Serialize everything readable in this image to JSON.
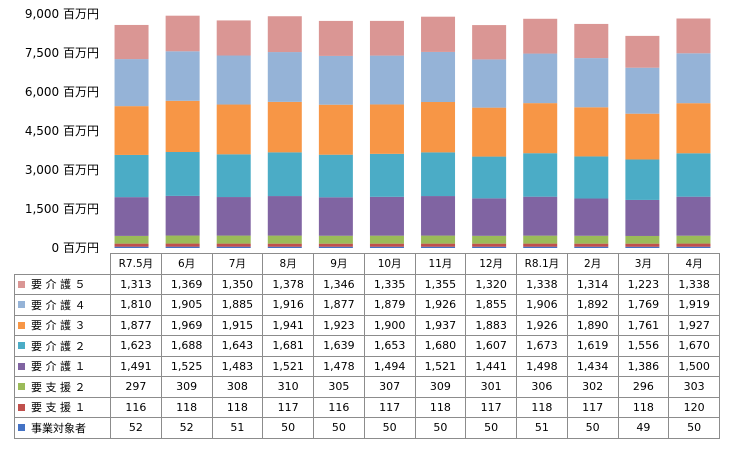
{
  "chart_data": {
    "type": "bar",
    "stacked": true,
    "ylim": [
      0,
      9000
    ],
    "yticks": [
      {
        "value": 0,
        "label": "0 百万円"
      },
      {
        "value": 1500,
        "label": "1,500 百万円"
      },
      {
        "value": 3000,
        "label": "3,000 百万円"
      },
      {
        "value": 4500,
        "label": "4,500 百万円"
      },
      {
        "value": 6000,
        "label": "6,000 百万円"
      },
      {
        "value": 7500,
        "label": "7,500 百万円"
      },
      {
        "value": 9000,
        "label": "9,000 百万円"
      }
    ],
    "grid": false,
    "categories": [
      "R7.5月",
      "6月",
      "7月",
      "8月",
      "9月",
      "10月",
      "11月",
      "12月",
      "R8.1月",
      "2月",
      "3月",
      "4月"
    ],
    "series": [
      {
        "name": "事業対象者",
        "color": "#4472c4",
        "values": [
          52,
          52,
          51,
          50,
          50,
          50,
          50,
          50,
          51,
          50,
          49,
          50
        ],
        "labels": [
          "52",
          "52",
          "51",
          "50",
          "50",
          "50",
          "50",
          "50",
          "51",
          "50",
          "49",
          "50"
        ]
      },
      {
        "name": "要 支 援 １",
        "color": "#c0504d",
        "values": [
          116,
          118,
          118,
          117,
          116,
          117,
          118,
          117,
          118,
          117,
          118,
          120
        ],
        "labels": [
          "116",
          "118",
          "118",
          "117",
          "116",
          "117",
          "118",
          "117",
          "118",
          "117",
          "118",
          "120"
        ]
      },
      {
        "name": "要 支 援 ２",
        "color": "#9bbb59",
        "values": [
          297,
          309,
          308,
          310,
          305,
          307,
          309,
          301,
          306,
          302,
          296,
          303
        ],
        "labels": [
          "297",
          "309",
          "308",
          "310",
          "305",
          "307",
          "309",
          "301",
          "306",
          "302",
          "296",
          "303"
        ]
      },
      {
        "name": "要 介 護 １",
        "color": "#8064a2",
        "values": [
          1491,
          1525,
          1483,
          1521,
          1478,
          1494,
          1521,
          1441,
          1498,
          1434,
          1386,
          1500
        ],
        "labels": [
          "1,491",
          "1,525",
          "1,483",
          "1,521",
          "1,478",
          "1,494",
          "1,521",
          "1,441",
          "1,498",
          "1,434",
          "1,386",
          "1,500"
        ]
      },
      {
        "name": "要 介 護 ２",
        "color": "#4bacc6",
        "values": [
          1623,
          1688,
          1643,
          1681,
          1639,
          1653,
          1680,
          1607,
          1673,
          1619,
          1556,
          1670
        ],
        "labels": [
          "1,623",
          "1,688",
          "1,643",
          "1,681",
          "1,639",
          "1,653",
          "1,680",
          "1,607",
          "1,673",
          "1,619",
          "1,556",
          "1,670"
        ]
      },
      {
        "name": "要 介 護 ３",
        "color": "#f79646",
        "values": [
          1877,
          1969,
          1915,
          1941,
          1923,
          1900,
          1937,
          1883,
          1926,
          1890,
          1761,
          1927
        ],
        "labels": [
          "1,877",
          "1,969",
          "1,915",
          "1,941",
          "1,923",
          "1,900",
          "1,937",
          "1,883",
          "1,926",
          "1,890",
          "1,761",
          "1,927"
        ]
      },
      {
        "name": "要 介 護 ４",
        "color": "#95b3d7",
        "values": [
          1810,
          1905,
          1885,
          1916,
          1877,
          1879,
          1926,
          1855,
          1906,
          1892,
          1769,
          1919
        ],
        "labels": [
          "1,810",
          "1,905",
          "1,885",
          "1,916",
          "1,877",
          "1,879",
          "1,926",
          "1,855",
          "1,906",
          "1,892",
          "1,769",
          "1,919"
        ]
      },
      {
        "name": "要 介 護 ５",
        "color": "#da9694",
        "values": [
          1313,
          1369,
          1350,
          1378,
          1346,
          1335,
          1355,
          1320,
          1338,
          1314,
          1223,
          1338
        ],
        "labels": [
          "1,313",
          "1,369",
          "1,350",
          "1,378",
          "1,346",
          "1,335",
          "1,355",
          "1,320",
          "1,338",
          "1,314",
          "1,223",
          "1,338"
        ]
      }
    ],
    "table_row_order": [
      "要 介 護 ５",
      "要 介 護 ４",
      "要 介 護 ３",
      "要 介 護 ２",
      "要 介 護 １",
      "要 支 援 ２",
      "要 支 援 １",
      "事業対象者"
    ]
  }
}
